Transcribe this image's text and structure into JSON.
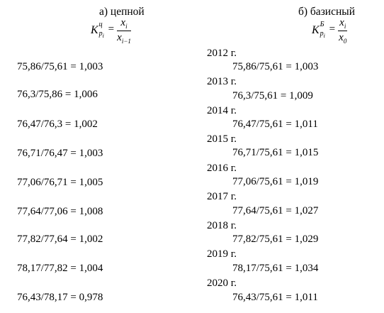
{
  "chain": {
    "heading": "а) цепной",
    "formula": {
      "k": "K",
      "sup": "ц",
      "sub": "p",
      "sub_index": "i",
      "eq": "=",
      "num": "x",
      "num_index": "i",
      "den": "x",
      "den_index": "i−1"
    },
    "rows": [
      "75,86/75,61 = 1,003",
      "76,3/75,86 = 1,006",
      "76,47/76,3 = 1,002",
      "76,71/76,47 = 1,003",
      "77,06/76,71 = 1,005",
      "77,64/77,06 = 1,008",
      "77,82/77,64 = 1,002",
      "78,17/77,82 = 1,004",
      "76,43/78,17 = 0,978"
    ]
  },
  "base": {
    "heading": "б) базисный",
    "formula": {
      "k": "K",
      "sup": "Б",
      "sub": "p",
      "sub_index": "i",
      "eq": "=",
      "num": "x",
      "num_index": "i",
      "den": "x",
      "den_index": "0"
    },
    "years": [
      "2012 г.",
      "2013 г.",
      "2014 г.",
      "2015 г.",
      "2016 г.",
      "2017 г.",
      "2018 г.",
      "2019 г.",
      "2020 г."
    ],
    "rows": [
      "75,86/75,61 = 1,003",
      "76,3/75,61 = 1,009",
      "76,47/75,61 = 1,011",
      "76,71/75,61 = 1,015",
      "77,06/75,61 = 1,019",
      "77,64/75,61 = 1,027",
      "77,82/75,61 = 1,029",
      "78,17/75,61 = 1,034",
      "76,43/75,61 = 1,011"
    ]
  }
}
